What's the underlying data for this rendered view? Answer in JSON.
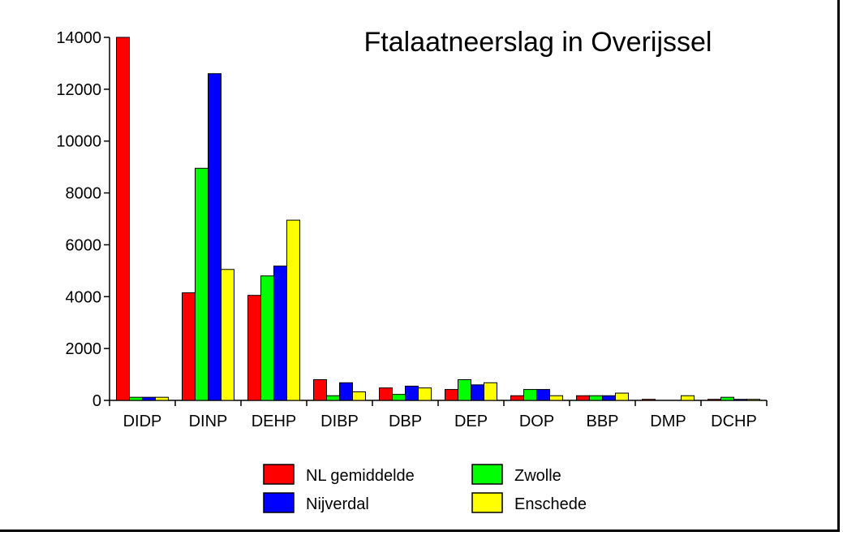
{
  "chart_data": {
    "type": "bar",
    "title": "Ftalaatneerslag in Overijssel",
    "xlabel": "",
    "ylabel": "",
    "ylim": [
      0,
      14000
    ],
    "yticks": [
      0,
      2000,
      4000,
      6000,
      8000,
      10000,
      12000,
      14000
    ],
    "grid": false,
    "legend_position": "bottom",
    "categories": [
      "DIDP",
      "DINP",
      "DEHP",
      "DIBP",
      "DBP",
      "DEP",
      "DOP",
      "BBP",
      "DMP",
      "DCHP"
    ],
    "series": [
      {
        "name": "NL gemiddelde",
        "color": "#ff0000",
        "values": [
          14000,
          4150,
          4050,
          800,
          480,
          420,
          180,
          180,
          40,
          40
        ]
      },
      {
        "name": "Zwolle",
        "color": "#00ff00",
        "values": [
          120,
          8950,
          4800,
          180,
          230,
          800,
          420,
          180,
          0,
          120
        ]
      },
      {
        "name": "Nijverdal",
        "color": "#0000ff",
        "values": [
          120,
          12600,
          5180,
          680,
          550,
          600,
          420,
          180,
          0,
          40
        ]
      },
      {
        "name": "Enschede",
        "color": "#ffff00",
        "values": [
          120,
          5050,
          6950,
          330,
          480,
          680,
          180,
          280,
          180,
          40
        ]
      }
    ]
  }
}
